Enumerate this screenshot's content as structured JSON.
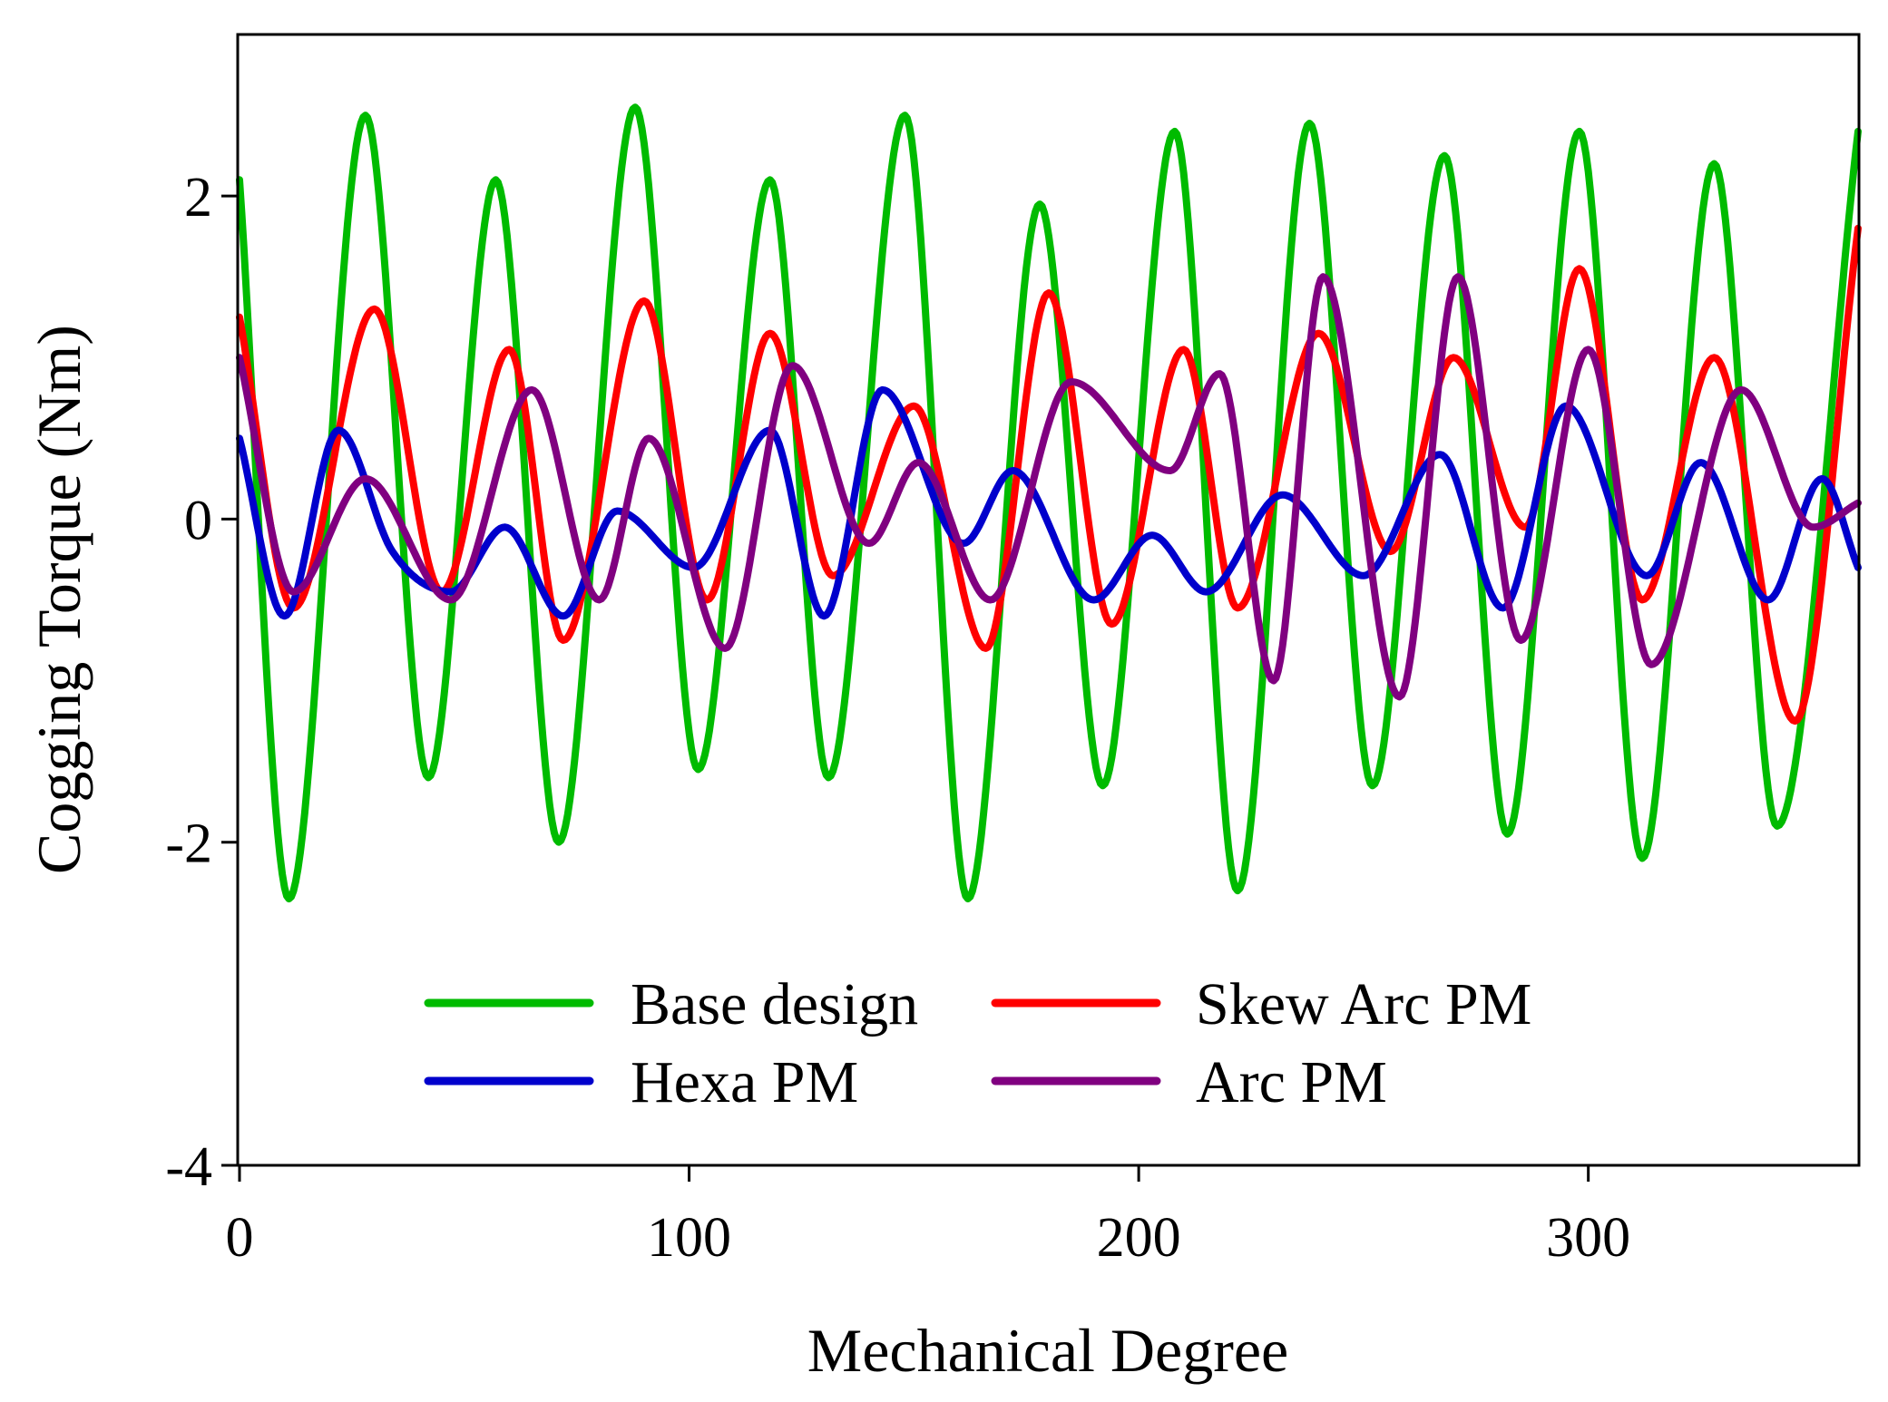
{
  "chart_data": {
    "type": "line",
    "title": "",
    "xlabel": "Mechanical Degree",
    "ylabel": "Cogging Torque (Nm)",
    "xlim": [
      0,
      360
    ],
    "ylim": [
      -4,
      3
    ],
    "xticks": [
      0,
      100,
      200,
      300
    ],
    "yticks": [
      -4,
      -2,
      0,
      2
    ],
    "grid": false,
    "legend_position": "bottom-center",
    "series": [
      {
        "name": "Base design",
        "color": "#00bb00",
        "x": [
          0,
          11,
          28,
          42,
          57,
          71,
          88,
          102,
          118,
          131,
          148,
          162,
          178,
          192,
          208,
          222,
          238,
          252,
          268,
          282,
          298,
          312,
          328,
          342,
          360
        ],
        "y": [
          2.1,
          -2.35,
          2.5,
          -1.6,
          2.1,
          -2.0,
          2.55,
          -1.55,
          2.1,
          -1.6,
          2.5,
          -2.35,
          1.95,
          -1.65,
          2.4,
          -2.3,
          2.45,
          -1.65,
          2.25,
          -1.95,
          2.4,
          -2.1,
          2.2,
          -1.9,
          2.4
        ]
      },
      {
        "name": "Skew Arc PM",
        "color": "#ff0000",
        "x": [
          0,
          12,
          30,
          45,
          60,
          72,
          90,
          104,
          118,
          132,
          150,
          166,
          180,
          194,
          210,
          222,
          240,
          256,
          270,
          286,
          298,
          312,
          328,
          346,
          360
        ],
        "y": [
          1.25,
          -0.55,
          1.3,
          -0.45,
          1.05,
          -0.75,
          1.35,
          -0.5,
          1.15,
          -0.35,
          0.7,
          -0.8,
          1.4,
          -0.65,
          1.05,
          -0.55,
          1.15,
          -0.2,
          1.0,
          -0.05,
          1.55,
          -0.5,
          1.0,
          -1.25,
          1.8
        ]
      },
      {
        "name": "Hexa PM",
        "color": "#0000cc",
        "x": [
          0,
          10,
          22,
          34,
          47,
          59,
          72,
          84,
          101,
          118,
          130,
          143,
          161,
          172,
          190,
          203,
          215,
          232,
          250,
          267,
          281,
          295,
          313,
          325,
          340,
          352,
          360
        ],
        "y": [
          0.5,
          -0.6,
          0.55,
          -0.2,
          -0.45,
          -0.05,
          -0.6,
          0.05,
          -0.3,
          0.55,
          -0.6,
          0.8,
          -0.15,
          0.3,
          -0.5,
          -0.1,
          -0.45,
          0.15,
          -0.35,
          0.4,
          -0.55,
          0.7,
          -0.35,
          0.35,
          -0.5,
          0.25,
          -0.3
        ]
      },
      {
        "name": "Arc PM",
        "color": "#800080",
        "x": [
          0,
          12,
          28,
          47,
          65,
          80,
          91,
          108,
          123,
          140,
          151,
          167,
          185,
          207,
          218,
          230,
          241,
          258,
          271,
          285,
          300,
          314,
          334,
          350,
          360
        ],
        "y": [
          1.0,
          -0.45,
          0.25,
          -0.5,
          0.8,
          -0.5,
          0.5,
          -0.8,
          0.95,
          -0.15,
          0.35,
          -0.5,
          0.85,
          0.3,
          0.9,
          -1.0,
          1.5,
          -1.1,
          1.5,
          -0.75,
          1.05,
          -0.9,
          0.8,
          -0.05,
          0.1
        ]
      }
    ]
  }
}
